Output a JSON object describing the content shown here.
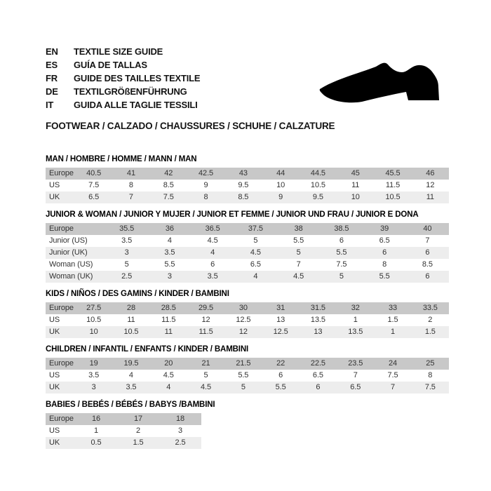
{
  "header": {
    "languages": [
      {
        "code": "EN",
        "label": "TEXTILE SIZE GUIDE"
      },
      {
        "code": "ES",
        "label": "GUÍA DE TALLAS"
      },
      {
        "code": "FR",
        "label": "GUIDE DES TAILLES TEXTILE"
      },
      {
        "code": "DE",
        "label": "TEXTILGRÖßENFÜHRUNG"
      },
      {
        "code": "IT",
        "label": "GUIDA ALLE TAGLIE TESSILI"
      }
    ],
    "category_title": "FOOTWEAR / CALZADO / CHAUSSURES / SCHUHE / CALZATURE",
    "shoe_icon": "dress-shoe-silhouette"
  },
  "colors": {
    "header_row_bg": "#c8c8c8",
    "alt_row_bg": "#ededed",
    "text": "#333333",
    "heading": "#141414",
    "shoe": "#000000"
  },
  "size_tables": [
    {
      "title": "MAN / HOMBRE / HOMME / MANN / MAN",
      "rows": [
        {
          "label": "Europe",
          "values": [
            "40.5",
            "41",
            "42",
            "42.5",
            "43",
            "44",
            "44.5",
            "45",
            "45.5",
            "46"
          ]
        },
        {
          "label": "US",
          "values": [
            "7.5",
            "8",
            "8.5",
            "9",
            "9.5",
            "10",
            "10.5",
            "11",
            "11.5",
            "12"
          ]
        },
        {
          "label": "UK",
          "values": [
            "6.5",
            "7",
            "7.5",
            "8",
            "8.5",
            "9",
            "9.5",
            "10",
            "10.5",
            "11"
          ]
        }
      ]
    },
    {
      "title": "JUNIOR & WOMAN / JUNIOR Y MUJER / JUNIOR ET FEMME / JUNIOR UND FRAU / JUNIOR E DONA",
      "rows": [
        {
          "label": "Europe",
          "values": [
            "35.5",
            "36",
            "36.5",
            "37.5",
            "38",
            "38.5",
            "39",
            "40"
          ]
        },
        {
          "label": "Junior (US)",
          "values": [
            "3.5",
            "4",
            "4.5",
            "5",
            "5.5",
            "6",
            "6.5",
            "7"
          ]
        },
        {
          "label": "Junior (UK)",
          "values": [
            "3",
            "3.5",
            "4",
            "4.5",
            "5",
            "5.5",
            "6",
            "6"
          ]
        },
        {
          "label": "Woman (US)",
          "values": [
            "5",
            "5.5",
            "6",
            "6.5",
            "7",
            "7.5",
            "8",
            "8.5"
          ]
        },
        {
          "label": "Woman (UK)",
          "values": [
            "2.5",
            "3",
            "3.5",
            "4",
            "4.5",
            "5",
            "5.5",
            "6"
          ]
        }
      ]
    },
    {
      "title": "KIDS / NIÑOS / DES GAMINS / KINDER / BAMBINI",
      "rows": [
        {
          "label": "Europe",
          "values": [
            "27.5",
            "28",
            "28.5",
            "29.5",
            "30",
            "31",
            "31.5",
            "32",
            "33",
            "33.5"
          ]
        },
        {
          "label": "US",
          "values": [
            "10.5",
            "11",
            "11.5",
            "12",
            "12.5",
            "13",
            "13.5",
            "1",
            "1.5",
            "2"
          ]
        },
        {
          "label": "UK",
          "values": [
            "10",
            "10.5",
            "11",
            "11.5",
            "12",
            "12.5",
            "13",
            "13.5",
            "1",
            "1.5"
          ]
        }
      ]
    },
    {
      "title": "CHILDREN / INFANTIL / ENFANTS / KINDER / BAMBINI",
      "rows": [
        {
          "label": "Europe",
          "values": [
            "19",
            "19.5",
            "20",
            "21",
            "21.5",
            "22",
            "22.5",
            "23.5",
            "24",
            "25"
          ]
        },
        {
          "label": "US",
          "values": [
            "3.5",
            "4",
            "4.5",
            "5",
            "5.5",
            "6",
            "6.5",
            "7",
            "7.5",
            "8"
          ]
        },
        {
          "label": "UK",
          "values": [
            "3",
            "3.5",
            "4",
            "4.5",
            "5",
            "5.5",
            "6",
            "6.5",
            "7",
            "7.5"
          ]
        }
      ]
    },
    {
      "title": "BABIES / BEBÉS / BÉBÉS / BABYS /BAMBINI",
      "rows": [
        {
          "label": "Europe",
          "values": [
            "16",
            "17",
            "18"
          ]
        },
        {
          "label": "US",
          "values": [
            "1",
            "2",
            "3"
          ]
        },
        {
          "label": "UK",
          "values": [
            "0.5",
            "1.5",
            "2.5"
          ]
        }
      ]
    }
  ]
}
